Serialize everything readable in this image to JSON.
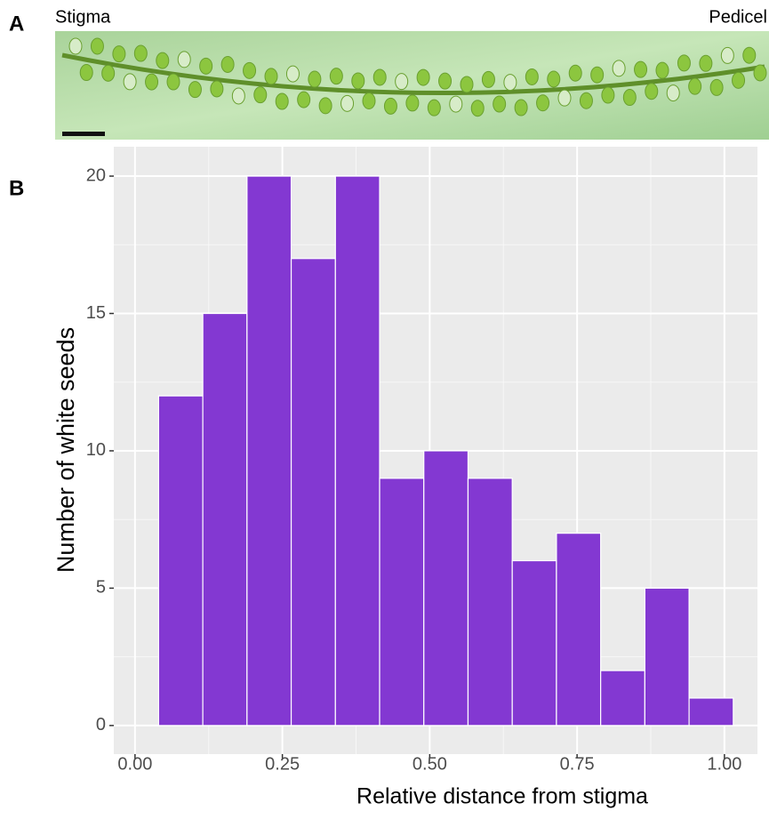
{
  "panel_a": {
    "label": "A",
    "left_label": "Stigma",
    "right_label": "Pedicel"
  },
  "panel_b_label": "B",
  "chart_data": {
    "type": "histogram",
    "x_label": "Relative distance from stigma",
    "y_label": "Number of white seeds",
    "bins": [
      0.04,
      0.115,
      0.19,
      0.265,
      0.34,
      0.415,
      0.49,
      0.565,
      0.64,
      0.715,
      0.79,
      0.865,
      0.94,
      1.015
    ],
    "values": [
      12,
      15,
      20,
      17,
      20,
      9,
      10,
      9,
      6,
      7,
      2,
      5,
      1
    ],
    "color": "#8338d2",
    "xlim": [
      -0.036,
      1.056
    ],
    "ylim": [
      -1.04,
      21.07
    ],
    "xticks": [
      {
        "value": 0,
        "label": "0.00"
      },
      {
        "value": 0.25,
        "label": "0.25"
      },
      {
        "value": 0.5,
        "label": "0.50"
      },
      {
        "value": 0.75,
        "label": "0.75"
      },
      {
        "value": 1,
        "label": "1.00"
      }
    ],
    "yticks": [
      0,
      5,
      10,
      15,
      20
    ],
    "grid": true
  }
}
